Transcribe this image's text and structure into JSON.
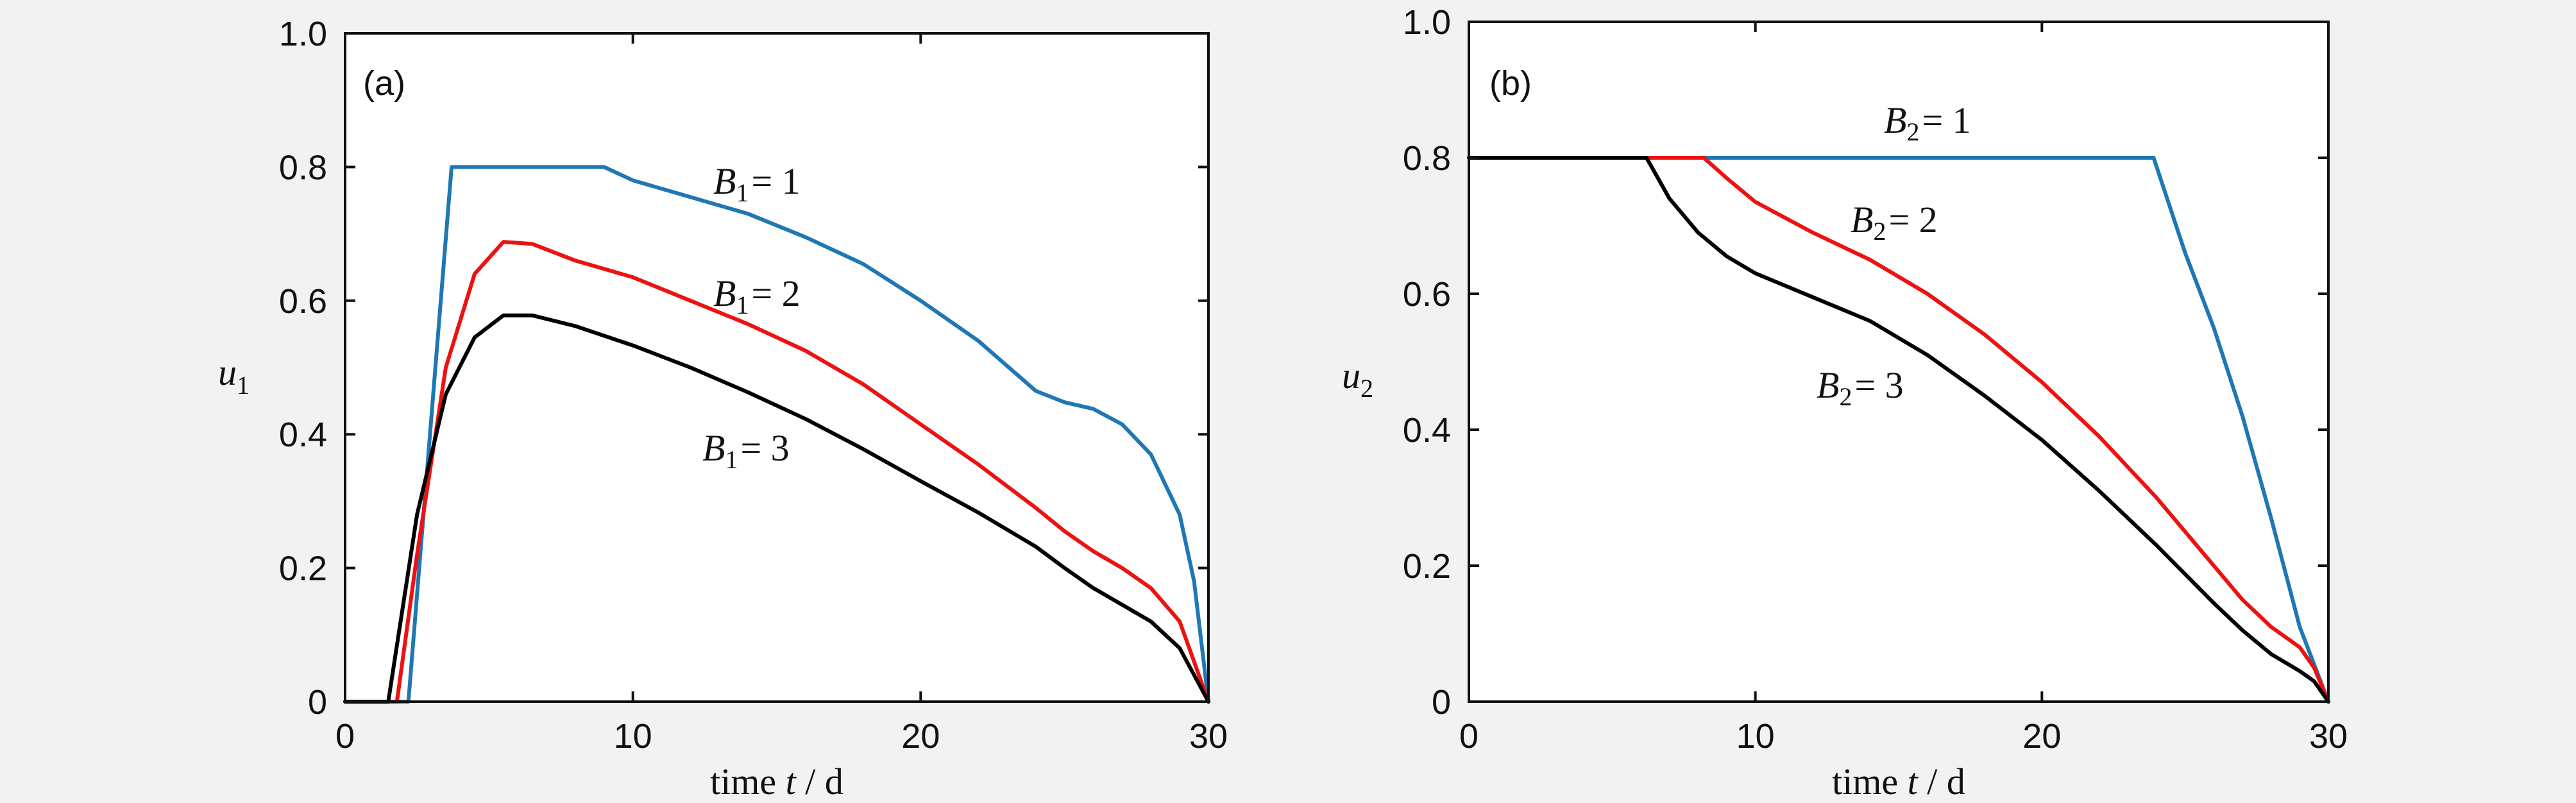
{
  "colors": {
    "B1": "#1f77b4",
    "B2": "#ee1111",
    "B3": "#000000",
    "axis": "#111111",
    "background": "#f2f2f2",
    "plot_bg": "#ffffff"
  },
  "chart_data": [
    {
      "type": "line",
      "panel": "(a)",
      "xlabel": {
        "pre": "time ",
        "var": "t",
        "post": " / d"
      },
      "ylabel": {
        "var": "u",
        "sub": "1"
      },
      "xlim": [
        0,
        30
      ],
      "ylim": [
        0,
        1
      ],
      "xticks": [
        "0",
        "10",
        "20",
        "30"
      ],
      "yticks": [
        "0",
        "0.2",
        "0.4",
        "0.6",
        "0.8",
        "1.0"
      ],
      "grid": false,
      "series": [
        {
          "key": "B1",
          "label": {
            "var": "B",
            "sub": "1",
            "eq": "= 1"
          },
          "x": [
            0,
            2.2,
            3.7,
            9,
            10,
            12,
            14,
            16,
            18,
            20,
            22,
            24,
            25,
            26,
            27,
            28,
            29,
            29.5,
            30
          ],
          "y": [
            0,
            0,
            0.8,
            0.8,
            0.78,
            0.755,
            0.73,
            0.695,
            0.655,
            0.6,
            0.54,
            0.465,
            0.448,
            0.438,
            0.415,
            0.37,
            0.28,
            0.18,
            0
          ]
        },
        {
          "key": "B2",
          "label": {
            "var": "B",
            "sub": "1",
            "eq": "= 2"
          },
          "x": [
            0,
            1.8,
            2.5,
            3.5,
            4.5,
            5.5,
            6.5,
            8,
            10,
            12,
            14,
            16,
            18,
            20,
            22,
            24,
            25,
            26,
            27,
            28,
            29,
            30
          ],
          "y": [
            0,
            0,
            0.22,
            0.5,
            0.64,
            0.688,
            0.685,
            0.66,
            0.635,
            0.6,
            0.565,
            0.525,
            0.475,
            0.415,
            0.355,
            0.29,
            0.255,
            0.225,
            0.2,
            0.17,
            0.12,
            0
          ]
        },
        {
          "key": "B3",
          "label": {
            "var": "B",
            "sub": "1",
            "eq": "= 3"
          },
          "x": [
            0,
            1.5,
            2.5,
            3.5,
            4.5,
            5.5,
            6.5,
            8,
            10,
            12,
            14,
            16,
            18,
            20,
            22,
            24,
            25,
            26,
            27,
            28,
            29,
            30
          ],
          "y": [
            0,
            0,
            0.28,
            0.46,
            0.545,
            0.578,
            0.578,
            0.562,
            0.533,
            0.5,
            0.463,
            0.423,
            0.378,
            0.33,
            0.283,
            0.232,
            0.2,
            0.17,
            0.145,
            0.12,
            0.08,
            0
          ]
        }
      ]
    },
    {
      "type": "line",
      "panel": "(b)",
      "xlabel": {
        "pre": "time ",
        "var": "t",
        "post": " / d"
      },
      "ylabel": {
        "var": "u",
        "sub": "2"
      },
      "xlim": [
        0,
        30
      ],
      "ylim": [
        0,
        1
      ],
      "xticks": [
        "0",
        "10",
        "20",
        "30"
      ],
      "yticks": [
        "0",
        "0.2",
        "0.4",
        "0.6",
        "0.8",
        "1.0"
      ],
      "grid": false,
      "series": [
        {
          "key": "B1",
          "label": {
            "var": "B",
            "sub": "2",
            "eq": "= 1"
          },
          "x": [
            0,
            23.9,
            25,
            26,
            27,
            28,
            29,
            30
          ],
          "y": [
            0.8,
            0.8,
            0.66,
            0.55,
            0.42,
            0.27,
            0.11,
            0
          ]
        },
        {
          "key": "B2",
          "label": {
            "var": "B",
            "sub": "2",
            "eq": "= 2"
          },
          "x": [
            0,
            8.2,
            9,
            10,
            12,
            14,
            16,
            18,
            20,
            22,
            24,
            26,
            27,
            28,
            29,
            29.5,
            30
          ],
          "y": [
            0.8,
            0.8,
            0.77,
            0.735,
            0.69,
            0.65,
            0.6,
            0.54,
            0.47,
            0.39,
            0.3,
            0.2,
            0.15,
            0.11,
            0.08,
            0.05,
            0
          ]
        },
        {
          "key": "B3",
          "label": {
            "var": "B",
            "sub": "2",
            "eq": "= 3"
          },
          "x": [
            0,
            6.2,
            7,
            8,
            9,
            10,
            12,
            14,
            16,
            18,
            20,
            22,
            24,
            26,
            27,
            28,
            29,
            29.5,
            30
          ],
          "y": [
            0.8,
            0.8,
            0.74,
            0.69,
            0.655,
            0.63,
            0.595,
            0.56,
            0.51,
            0.45,
            0.385,
            0.31,
            0.23,
            0.145,
            0.105,
            0.07,
            0.045,
            0.03,
            0
          ]
        }
      ]
    }
  ]
}
